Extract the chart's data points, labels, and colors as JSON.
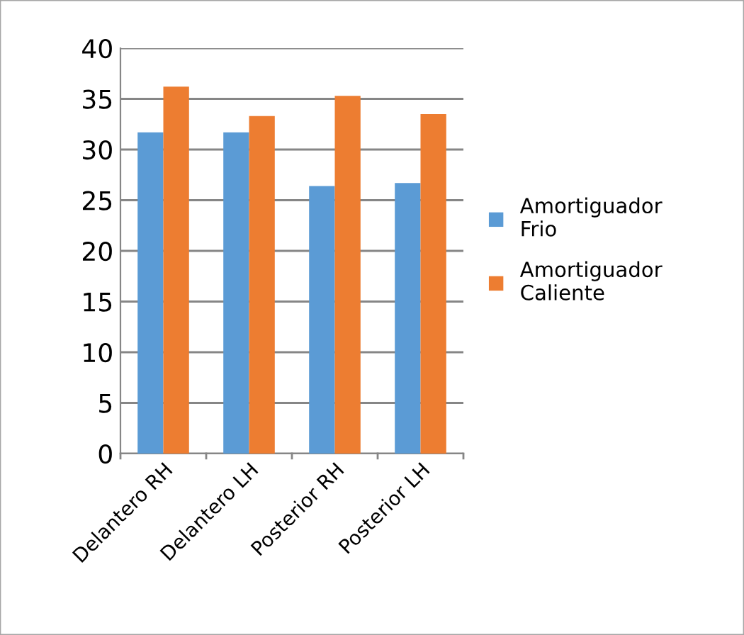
{
  "chart_data": {
    "type": "bar",
    "categories": [
      "Delantero RH",
      "Delantero LH",
      "Posterior RH",
      "Posterior LH"
    ],
    "series": [
      {
        "name": "Amortiguador Frio",
        "color": "#5b9bd5",
        "values": [
          31.7,
          31.7,
          26.4,
          26.7
        ]
      },
      {
        "name": "Amortiguador Caliente",
        "color": "#ed7d31",
        "values": [
          36.2,
          33.3,
          35.3,
          33.5
        ]
      }
    ],
    "ylim": [
      0,
      40
    ],
    "yticks": [
      0,
      5,
      10,
      15,
      20,
      25,
      30,
      35,
      40
    ],
    "grid": "y",
    "legend": "right"
  }
}
